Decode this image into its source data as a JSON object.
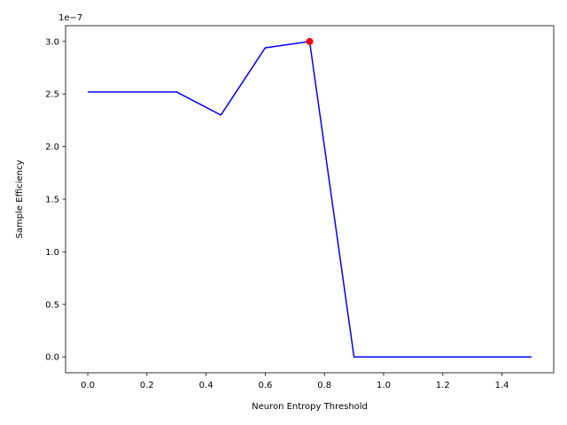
{
  "chart_data": {
    "type": "line",
    "xlabel": "Neuron Entropy Threshold",
    "ylabel": "Sample Efficiency",
    "y_offset_label": "1e−7",
    "xlim": [
      -0.075,
      1.575
    ],
    "ylim": [
      -0.15,
      3.15
    ],
    "x_ticks": [
      0.0,
      0.2,
      0.4,
      0.6,
      0.8,
      1.0,
      1.2,
      1.4
    ],
    "x_tick_labels": [
      "0.0",
      "0.2",
      "0.4",
      "0.6",
      "0.8",
      "1.0",
      "1.2",
      "1.4"
    ],
    "y_ticks": [
      0.0,
      0.5,
      1.0,
      1.5,
      2.0,
      2.5,
      3.0
    ],
    "y_tick_labels": [
      "0.0",
      "0.5",
      "1.0",
      "1.5",
      "2.0",
      "2.5",
      "3.0"
    ],
    "grid": false,
    "series": [
      {
        "color": "#0000ff",
        "x": [
          0.0,
          0.15,
          0.3,
          0.45,
          0.6,
          0.75,
          0.9,
          1.05,
          1.2,
          1.35,
          1.5
        ],
        "y": [
          2.52,
          2.52,
          2.52,
          2.3,
          2.94,
          3.0,
          0.0,
          0.0,
          0.0,
          0.0,
          0.0
        ]
      }
    ],
    "highlight_point": {
      "x": 0.75,
      "y": 3.0,
      "color": "#ff0000"
    }
  }
}
